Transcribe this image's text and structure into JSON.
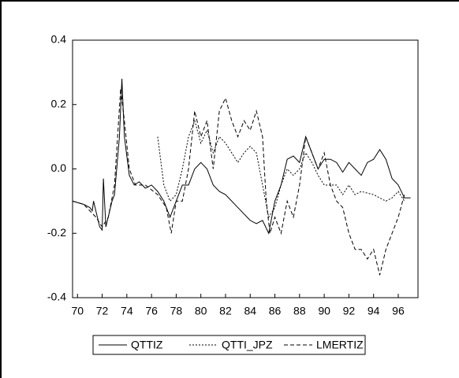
{
  "chart_data": {
    "type": "line",
    "xlim": [
      69.6,
      97.6
    ],
    "xticks": [
      70,
      72,
      74,
      76,
      78,
      80,
      82,
      84,
      86,
      88,
      90,
      92,
      94,
      96
    ],
    "ylim": [
      -0.4,
      0.4
    ],
    "yticks": [
      0.4,
      0.2,
      {
        "value": 0,
        "label": "0.0"
      },
      -0.2,
      -0.4
    ],
    "series": [
      {
        "name": "QTTIZ",
        "color": "#000000",
        "dash": "none",
        "x": [
          69.6,
          70.5,
          71,
          71.2,
          71.3,
          71.8,
          72,
          72.1,
          72.3,
          72.8,
          73,
          73.4,
          73.6,
          73.8,
          74.2,
          74.6,
          75,
          75.5,
          76,
          76.5,
          77,
          77.5,
          78,
          78.5,
          79,
          79.5,
          80,
          80.5,
          81,
          81.5,
          82,
          83,
          84,
          84.5,
          85,
          85.5,
          86,
          86.5,
          87,
          87.5,
          88,
          88.5,
          89,
          89.5,
          90,
          90.5,
          91,
          91.5,
          92,
          92.5,
          93,
          93.5,
          94,
          94.5,
          95,
          95.5,
          96,
          96.5,
          97
        ],
        "values": [
          -0.1,
          -0.11,
          -0.12,
          -0.13,
          -0.1,
          -0.18,
          -0.19,
          -0.03,
          -0.18,
          -0.1,
          -0.08,
          0.1,
          0.28,
          0.1,
          -0.02,
          -0.05,
          -0.04,
          -0.06,
          -0.05,
          -0.07,
          -0.1,
          -0.15,
          -0.1,
          -0.05,
          -0.05,
          0.0,
          0.02,
          0.0,
          -0.05,
          -0.07,
          -0.08,
          -0.12,
          -0.16,
          -0.17,
          -0.16,
          -0.2,
          -0.1,
          -0.05,
          0.03,
          0.04,
          0.02,
          0.1,
          0.05,
          0.0,
          0.03,
          0.03,
          0.02,
          -0.01,
          0.02,
          0.0,
          -0.02,
          0.02,
          0.03,
          0.06,
          0.03,
          -0.03,
          -0.05,
          -0.09,
          -0.09
        ]
      },
      {
        "name": "QTTI_JPZ",
        "color": "#000000",
        "dash": "2,2",
        "x": [
          76.5,
          77,
          77.5,
          78,
          78.5,
          79,
          79.5,
          80,
          80.5,
          81,
          81.5,
          82,
          82.5,
          83,
          83.5,
          84,
          84.5,
          85,
          85.5,
          86,
          86.5,
          87,
          87.5,
          88,
          88.5,
          89,
          89.5,
          90,
          91,
          91.5,
          92,
          92.5,
          93,
          94,
          95,
          95.5,
          96,
          96.5
        ],
        "values": [
          0.1,
          -0.05,
          -0.1,
          -0.08,
          0.0,
          0.1,
          0.15,
          0.08,
          0.12,
          0.05,
          0.1,
          0.08,
          0.05,
          0.02,
          0.05,
          0.07,
          0.05,
          -0.05,
          -0.15,
          -0.12,
          -0.05,
          0.0,
          -0.02,
          0.0,
          0.05,
          0.02,
          -0.02,
          -0.05,
          -0.05,
          -0.08,
          -0.05,
          -0.08,
          -0.07,
          -0.08,
          -0.1,
          -0.09,
          -0.07,
          -0.1
        ]
      },
      {
        "name": "LMERTIZ",
        "color": "#000000",
        "dash": "5,3",
        "x": [
          69.6,
          70.5,
          71,
          71.5,
          72,
          72.5,
          73,
          73.5,
          73.8,
          74.2,
          74.7,
          75.5,
          76.5,
          77.2,
          77.6,
          78,
          78.5,
          79,
          79.5,
          80,
          80.5,
          81,
          81.5,
          82,
          82.5,
          83,
          83.5,
          84,
          84.5,
          85,
          85.3,
          85.6,
          86,
          86.5,
          87,
          87.5,
          88,
          88.5,
          89,
          89.5,
          90,
          90.5,
          91,
          91.5,
          92,
          92.5,
          93,
          93.5,
          94,
          94.5,
          95,
          95.5,
          96,
          96.5
        ],
        "values": [
          -0.1,
          -0.11,
          -0.13,
          -0.15,
          -0.18,
          -0.15,
          -0.05,
          0.25,
          0.15,
          0.0,
          -0.05,
          -0.05,
          -0.08,
          -0.12,
          -0.2,
          -0.1,
          -0.1,
          0.0,
          0.18,
          0.1,
          0.15,
          0.0,
          0.18,
          0.22,
          0.15,
          0.1,
          0.15,
          0.12,
          0.18,
          0.1,
          -0.1,
          -0.2,
          -0.15,
          -0.2,
          -0.1,
          -0.15,
          -0.05,
          0.1,
          0.05,
          0.0,
          0.05,
          -0.05,
          -0.1,
          -0.12,
          -0.2,
          -0.25,
          -0.25,
          -0.28,
          -0.25,
          -0.33,
          -0.25,
          -0.2,
          -0.15,
          -0.08
        ]
      }
    ]
  }
}
